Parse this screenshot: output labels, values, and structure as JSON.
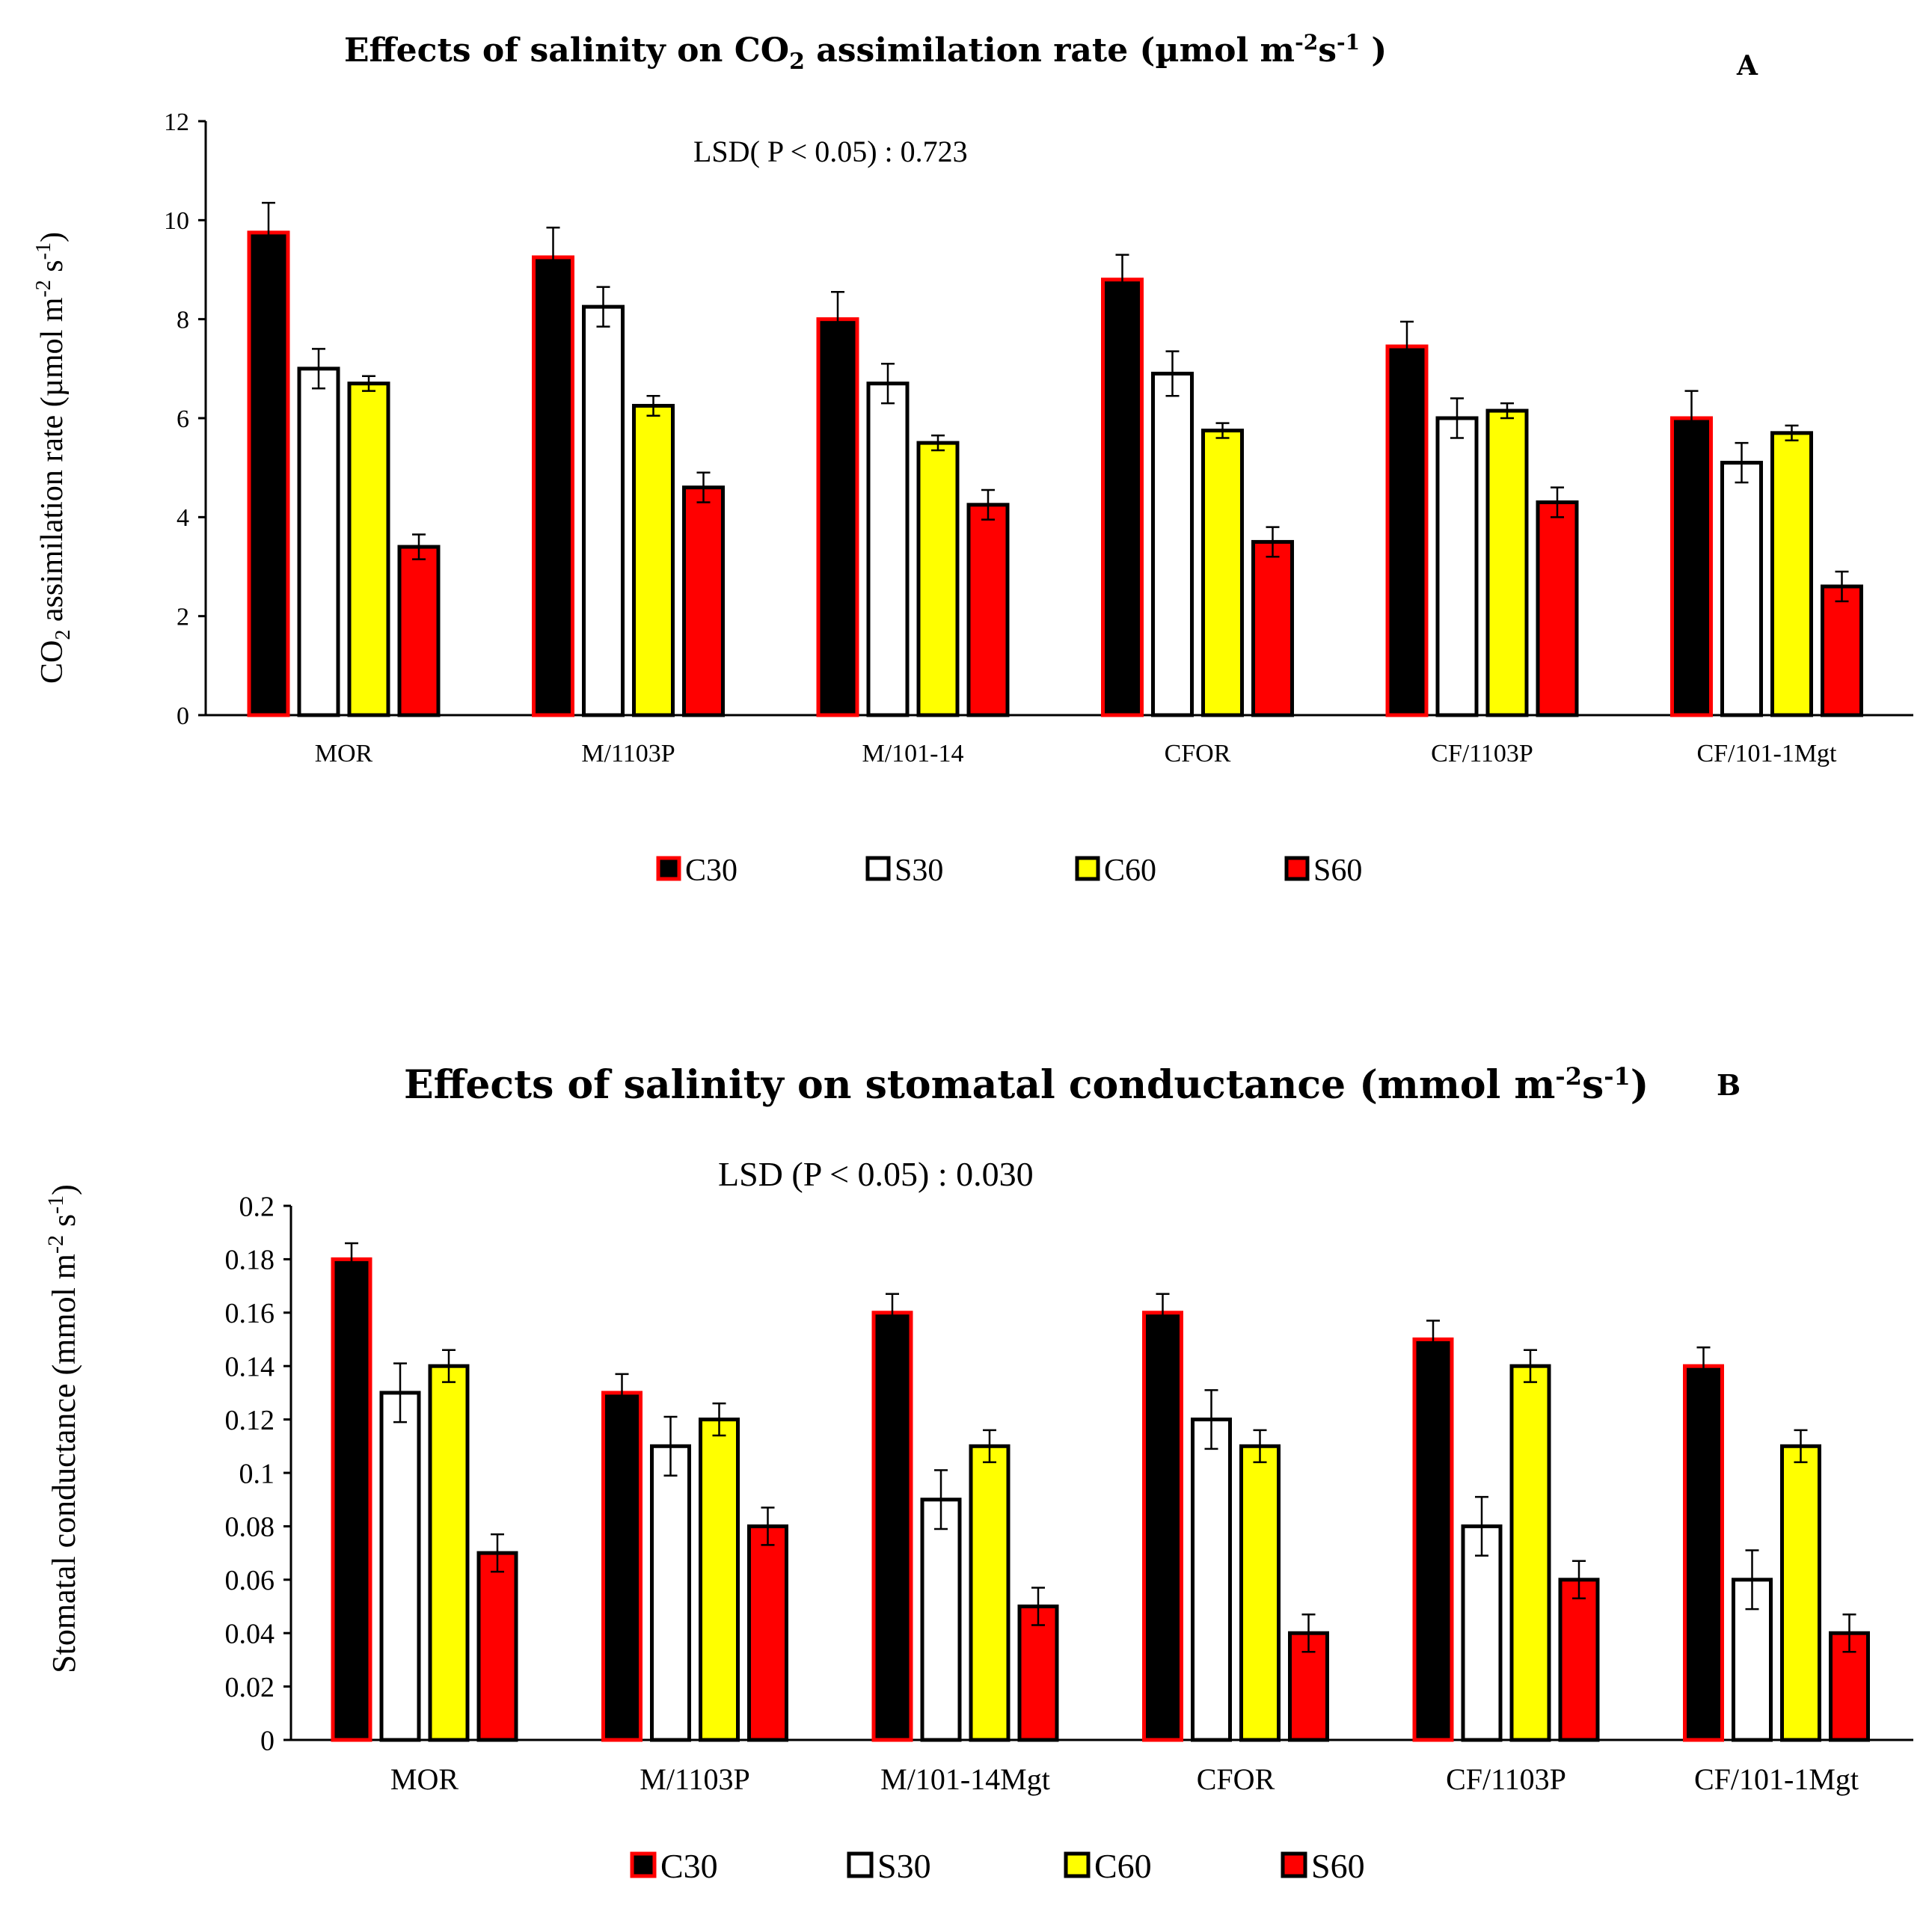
{
  "chart_data": [
    {
      "type": "bar",
      "panel": "A",
      "title": "Effects of salinity on CO",
      "title_sub": "2",
      "title_rest": " assimilation rate (µmol m",
      "title_sup1": "-2",
      "title_mid": "s",
      "title_sup2": "-1",
      "title_end": " )",
      "annotation": "LSD( P < 0.05) : 0.723",
      "ylabel_main": "CO",
      "ylabel_sub": "2",
      "ylabel_rest": " assimilation rate (µmol m",
      "ylabel_sup1": "-2",
      "ylabel_mid": " s",
      "ylabel_sup2": "-1",
      "ylabel_end": ")",
      "ylim": [
        0,
        12
      ],
      "yticks": [
        "0",
        "2",
        "4",
        "6",
        "8",
        "10",
        "12"
      ],
      "ytick_values": [
        0,
        2,
        4,
        6,
        8,
        10,
        12
      ],
      "categories": [
        "MOR",
        "M/1103P",
        "M/101-14",
        "CFOR",
        "CF/1103P",
        "CF/101-1Mgt"
      ],
      "series": [
        {
          "name": "C30",
          "fill": "#000000",
          "stroke": "#ff0000",
          "values": [
            9.75,
            9.25,
            8.0,
            8.8,
            7.45,
            6.0
          ],
          "errors": [
            0.6,
            0.6,
            0.55,
            0.5,
            0.5,
            0.55
          ]
        },
        {
          "name": "S30",
          "fill": "#ffffff",
          "stroke": "#000000",
          "values": [
            7.0,
            8.25,
            6.7,
            6.9,
            6.0,
            5.1
          ],
          "errors": [
            0.4,
            0.4,
            0.4,
            0.45,
            0.4,
            0.4
          ]
        },
        {
          "name": "C60",
          "fill": "#ffff00",
          "stroke": "#000000",
          "values": [
            6.7,
            6.25,
            5.5,
            5.75,
            6.15,
            5.7
          ],
          "errors": [
            0.15,
            0.2,
            0.15,
            0.15,
            0.15,
            0.15
          ]
        },
        {
          "name": "S60",
          "fill": "#ff0000",
          "stroke": "#000000",
          "values": [
            3.4,
            4.6,
            4.25,
            3.5,
            4.3,
            2.6
          ],
          "errors": [
            0.25,
            0.3,
            0.3,
            0.3,
            0.3,
            0.3
          ]
        }
      ],
      "legend": [
        "C30",
        "S30",
        "C60",
        "S60"
      ],
      "legend_position": "bottom",
      "grid": false
    },
    {
      "type": "bar",
      "panel": "B",
      "title": "Effects of salinity on stomatal conductance (mmol m",
      "title_sup1": "-2",
      "title_mid": "s",
      "title_sup2": "-1",
      "title_end": ")",
      "annotation": "LSD (P < 0.05) : 0.030",
      "ylabel_main": "Stomatal conductance (mmol m",
      "ylabel_sup1": "-2",
      "ylabel_mid": " s",
      "ylabel_sup2": "-1",
      "ylabel_end": ")",
      "ylim": [
        0,
        0.2
      ],
      "yticks": [
        "0",
        "0.02",
        "0.04",
        "0.06",
        "0.08",
        "0.1",
        "0.12",
        "0.14",
        "0.16",
        "0.18",
        "0.2"
      ],
      "ytick_values": [
        0,
        0.02,
        0.04,
        0.06,
        0.08,
        0.1,
        0.12,
        0.14,
        0.16,
        0.18,
        0.2
      ],
      "categories": [
        "MOR",
        "M/1103P",
        "M/101-14Mgt",
        "CFOR",
        "CF/1103P",
        "CF/101-1Mgt"
      ],
      "series": [
        {
          "name": "C30",
          "fill": "#000000",
          "stroke": "#ff0000",
          "values": [
            0.18,
            0.13,
            0.16,
            0.16,
            0.15,
            0.14
          ],
          "errors": [
            0.006,
            0.007,
            0.007,
            0.007,
            0.007,
            0.007
          ]
        },
        {
          "name": "S30",
          "fill": "#ffffff",
          "stroke": "#000000",
          "values": [
            0.13,
            0.11,
            0.09,
            0.12,
            0.08,
            0.06
          ],
          "errors": [
            0.011,
            0.011,
            0.011,
            0.011,
            0.011,
            0.011
          ]
        },
        {
          "name": "C60",
          "fill": "#ffff00",
          "stroke": "#000000",
          "values": [
            0.14,
            0.12,
            0.11,
            0.11,
            0.14,
            0.11
          ],
          "errors": [
            0.006,
            0.006,
            0.006,
            0.006,
            0.006,
            0.006
          ]
        },
        {
          "name": "S60",
          "fill": "#ff0000",
          "stroke": "#000000",
          "values": [
            0.07,
            0.08,
            0.05,
            0.04,
            0.06,
            0.04
          ],
          "errors": [
            0.007,
            0.007,
            0.007,
            0.007,
            0.007,
            0.007
          ]
        }
      ],
      "legend": [
        "C30",
        "S30",
        "C60",
        "S60"
      ],
      "legend_position": "bottom",
      "grid": false
    }
  ]
}
